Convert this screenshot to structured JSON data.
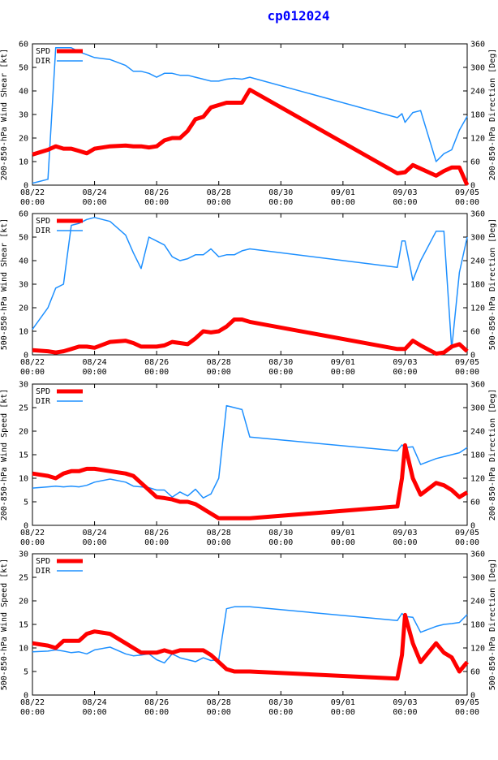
{
  "title": "cp012024",
  "colors": {
    "spd": "#ff0000",
    "dir": "#1e90ff",
    "title": "#0000ff",
    "axis": "#000000"
  },
  "x_ticks": [
    {
      "day": 0,
      "label1": "08/22",
      "label2": "00:00"
    },
    {
      "day": 2,
      "label1": "08/24",
      "label2": "00:00"
    },
    {
      "day": 4,
      "label1": "08/26",
      "label2": "00:00"
    },
    {
      "day": 6,
      "label1": "08/28",
      "label2": "00:00"
    },
    {
      "day": 8,
      "label1": "08/30",
      "label2": "00:00"
    },
    {
      "day": 10,
      "label1": "09/01",
      "label2": "00:00"
    },
    {
      "day": 12,
      "label1": "09/03",
      "label2": "00:00"
    },
    {
      "day": 14,
      "label1": "09/05",
      "label2": "00:00"
    }
  ],
  "chart_data": [
    {
      "type": "line",
      "ylabel_left": "200-850-hPa Wind Shear [kt]",
      "ylabel_right": "200-850-hPa Direction [Deg]",
      "xlim": [
        0,
        14
      ],
      "ylim_left": [
        0,
        60
      ],
      "ylim_right": [
        0,
        360
      ],
      "yticks_left": [
        0,
        10,
        20,
        30,
        40,
        50,
        60
      ],
      "yticks_right": [
        0,
        60,
        120,
        180,
        240,
        300,
        360
      ],
      "legend": [
        "SPD",
        "DIR"
      ],
      "legend_position": "top-left",
      "series": [
        {
          "name": "SPD",
          "axis": "left",
          "x": [
            0,
            0.5,
            0.75,
            1,
            1.25,
            1.5,
            1.75,
            2,
            2.5,
            3,
            3.25,
            3.5,
            3.75,
            4,
            4.25,
            4.5,
            4.75,
            5,
            5.25,
            5.5,
            5.75,
            6,
            6.25,
            6.5,
            6.75,
            7,
            11.75,
            12,
            12.25,
            12.5,
            13,
            13.25,
            13.5,
            13.75,
            14
          ],
          "y": [
            13,
            15,
            16.5,
            15.5,
            15.5,
            14.5,
            13.5,
            15.5,
            16.5,
            16.8,
            16.5,
            16.5,
            16,
            16.5,
            19,
            20,
            20,
            23,
            28,
            29,
            33,
            34,
            35,
            35,
            35,
            40.5,
            5,
            5.5,
            8.5,
            7,
            4,
            6,
            7.5,
            7.5,
            0
          ]
        },
        {
          "name": "DIR",
          "axis": "right",
          "x": [
            0,
            0.5,
            0.75,
            1.25,
            1.5,
            2,
            2.5,
            3,
            3.25,
            3.5,
            3.75,
            4,
            4.25,
            4.5,
            4.75,
            5,
            5.25,
            5.5,
            5.75,
            6,
            6.25,
            6.5,
            6.75,
            7,
            11.75,
            11.9,
            12,
            12.25,
            12.5,
            13,
            13.25,
            13.5,
            13.75,
            14
          ],
          "y": [
            5,
            15,
            350,
            350,
            340,
            325,
            320,
            305,
            290,
            290,
            285,
            275,
            285,
            285,
            280,
            280,
            275,
            270,
            265,
            265,
            270,
            272,
            270,
            275,
            172,
            182,
            160,
            185,
            190,
            60,
            80,
            90,
            140,
            175
          ]
        }
      ]
    },
    {
      "type": "line",
      "ylabel_left": "500-850-hPa Wind Shear [kt]",
      "ylabel_right": "500-850-hPa Direction [Deg]",
      "xlim": [
        0,
        14
      ],
      "ylim_left": [
        0,
        60
      ],
      "ylim_right": [
        0,
        360
      ],
      "yticks_left": [
        0,
        10,
        20,
        30,
        40,
        50,
        60
      ],
      "yticks_right": [
        0,
        60,
        120,
        180,
        240,
        300,
        360
      ],
      "legend": [
        "SPD",
        "DIR"
      ],
      "legend_position": "top-left",
      "series": [
        {
          "name": "SPD",
          "axis": "left",
          "x": [
            0,
            0.5,
            0.75,
            1,
            1.25,
            1.5,
            1.75,
            2,
            2.5,
            3,
            3.25,
            3.5,
            3.75,
            4,
            4.25,
            4.5,
            4.75,
            5,
            5.25,
            5.5,
            5.75,
            6,
            6.25,
            6.5,
            6.75,
            7,
            11.75,
            12,
            12.25,
            12.5,
            13,
            13.25,
            13.5,
            13.75,
            14
          ],
          "y": [
            2,
            1.5,
            1,
            1.5,
            2.5,
            3.5,
            3.5,
            3,
            5.5,
            6,
            5,
            3.5,
            3.5,
            3.5,
            4,
            5.5,
            5,
            4.5,
            7,
            10,
            9.5,
            10,
            12,
            15,
            15,
            14,
            2.5,
            2.5,
            6,
            4,
            0.5,
            1,
            3.5,
            4.5,
            1.5
          ]
        },
        {
          "name": "DIR",
          "axis": "right",
          "x": [
            0,
            0.5,
            0.75,
            1,
            1.25,
            1.5,
            1.75,
            2,
            2.5,
            3,
            3.25,
            3.5,
            3.75,
            4,
            4.25,
            4.5,
            4.75,
            5,
            5.25,
            5.5,
            5.75,
            6,
            6.25,
            6.5,
            6.75,
            7,
            11.75,
            11.9,
            12,
            12.25,
            12.5,
            13,
            13.25,
            13.5,
            13.75,
            14
          ],
          "y": [
            65,
            120,
            170,
            180,
            330,
            335,
            345,
            350,
            340,
            305,
            260,
            220,
            300,
            290,
            280,
            250,
            240,
            245,
            255,
            255,
            270,
            250,
            255,
            255,
            265,
            270,
            223,
            290,
            290,
            190,
            240,
            315,
            315,
            15,
            210,
            300
          ]
        }
      ]
    },
    {
      "type": "line",
      "ylabel_left": "200-850-hPa Wind Speed [kt]",
      "ylabel_right": "200-850-hPa Direction [Deg]",
      "xlim": [
        0,
        14
      ],
      "ylim_left": [
        0,
        30
      ],
      "ylim_right": [
        0,
        360
      ],
      "yticks_left": [
        0,
        5,
        10,
        15,
        20,
        25,
        30
      ],
      "yticks_right": [
        0,
        60,
        120,
        180,
        240,
        300,
        360
      ],
      "legend": [
        "SPD",
        "DIR"
      ],
      "legend_position": "top-left",
      "series": [
        {
          "name": "SPD",
          "axis": "left",
          "x": [
            0,
            0.5,
            0.75,
            1,
            1.25,
            1.5,
            1.75,
            2,
            2.5,
            3,
            3.25,
            3.5,
            3.75,
            4,
            4.25,
            4.5,
            4.75,
            5,
            5.25,
            5.5,
            5.75,
            6,
            6.25,
            6.5,
            6.75,
            7,
            11.75,
            11.9,
            12,
            12.25,
            12.5,
            13,
            13.25,
            13.5,
            13.75,
            14
          ],
          "y": [
            11,
            10.5,
            10,
            11,
            11.5,
            11.5,
            12,
            12,
            11.5,
            11,
            10.5,
            9,
            7.5,
            6,
            5.8,
            5.5,
            5,
            5,
            4.5,
            3.5,
            2.5,
            1.5,
            1.5,
            1.5,
            1.5,
            1.5,
            4,
            10,
            17,
            10,
            6.5,
            9,
            8.5,
            7.5,
            6,
            7
          ]
        },
        {
          "name": "DIR",
          "axis": "right",
          "x": [
            0,
            0.5,
            0.75,
            1,
            1.25,
            1.5,
            1.75,
            2,
            2.5,
            3,
            3.25,
            3.5,
            3.75,
            4,
            4.25,
            4.5,
            4.75,
            5,
            5.25,
            5.5,
            5.75,
            6,
            6.25,
            6.5,
            6.75,
            7,
            11.75,
            11.9,
            12,
            12.25,
            12.5,
            13,
            13.25,
            13.5,
            13.75,
            14
          ],
          "y": [
            95,
            98,
            100,
            98,
            100,
            98,
            102,
            110,
            118,
            110,
            100,
            98,
            96,
            90,
            90,
            72,
            85,
            75,
            92,
            70,
            80,
            120,
            305,
            300,
            295,
            225,
            190,
            205,
            198,
            200,
            155,
            170,
            175,
            180,
            185,
            198
          ]
        }
      ]
    },
    {
      "type": "line",
      "ylabel_left": "500-850-hPa Wind Speed [kt]",
      "ylabel_right": "500-850-hPa Direction [Deg]",
      "xlim": [
        0,
        14
      ],
      "ylim_left": [
        0,
        30
      ],
      "ylim_right": [
        0,
        360
      ],
      "yticks_left": [
        0,
        5,
        10,
        15,
        20,
        25,
        30
      ],
      "yticks_right": [
        0,
        60,
        120,
        180,
        240,
        300,
        360
      ],
      "legend": [
        "SPD",
        "DIR"
      ],
      "legend_position": "top-left",
      "series": [
        {
          "name": "SPD",
          "axis": "left",
          "x": [
            0,
            0.5,
            0.75,
            1,
            1.25,
            1.5,
            1.75,
            2,
            2.5,
            3,
            3.25,
            3.5,
            3.75,
            4,
            4.25,
            4.5,
            4.75,
            5,
            5.25,
            5.5,
            5.75,
            6,
            6.25,
            6.5,
            6.75,
            7,
            11.75,
            11.9,
            12,
            12.25,
            12.5,
            13,
            13.25,
            13.5,
            13.75,
            14
          ],
          "y": [
            11,
            10.5,
            10,
            11.5,
            11.5,
            11.5,
            13,
            13.5,
            13,
            11,
            10,
            9,
            9,
            9,
            9.5,
            9,
            9.5,
            9.5,
            9.5,
            9.5,
            8.5,
            7,
            5.5,
            5,
            5,
            5,
            3.5,
            8.5,
            17,
            11,
            7,
            11,
            9,
            8,
            5,
            7
          ]
        },
        {
          "name": "DIR",
          "axis": "right",
          "x": [
            0,
            0.5,
            0.75,
            1,
            1.25,
            1.5,
            1.75,
            2,
            2.5,
            3,
            3.25,
            3.5,
            3.75,
            4,
            4.25,
            4.5,
            4.75,
            5,
            5.25,
            5.5,
            5.75,
            6,
            6.25,
            6.5,
            6.75,
            7,
            11.75,
            11.9,
            12,
            12.25,
            12.5,
            13,
            13.25,
            13.5,
            13.75,
            14
          ],
          "y": [
            110,
            112,
            115,
            112,
            108,
            110,
            105,
            115,
            122,
            105,
            100,
            102,
            105,
            90,
            82,
            105,
            95,
            90,
            85,
            95,
            88,
            90,
            220,
            225,
            225,
            225,
            190,
            208,
            200,
            198,
            160,
            175,
            180,
            182,
            185,
            205
          ]
        }
      ]
    }
  ]
}
